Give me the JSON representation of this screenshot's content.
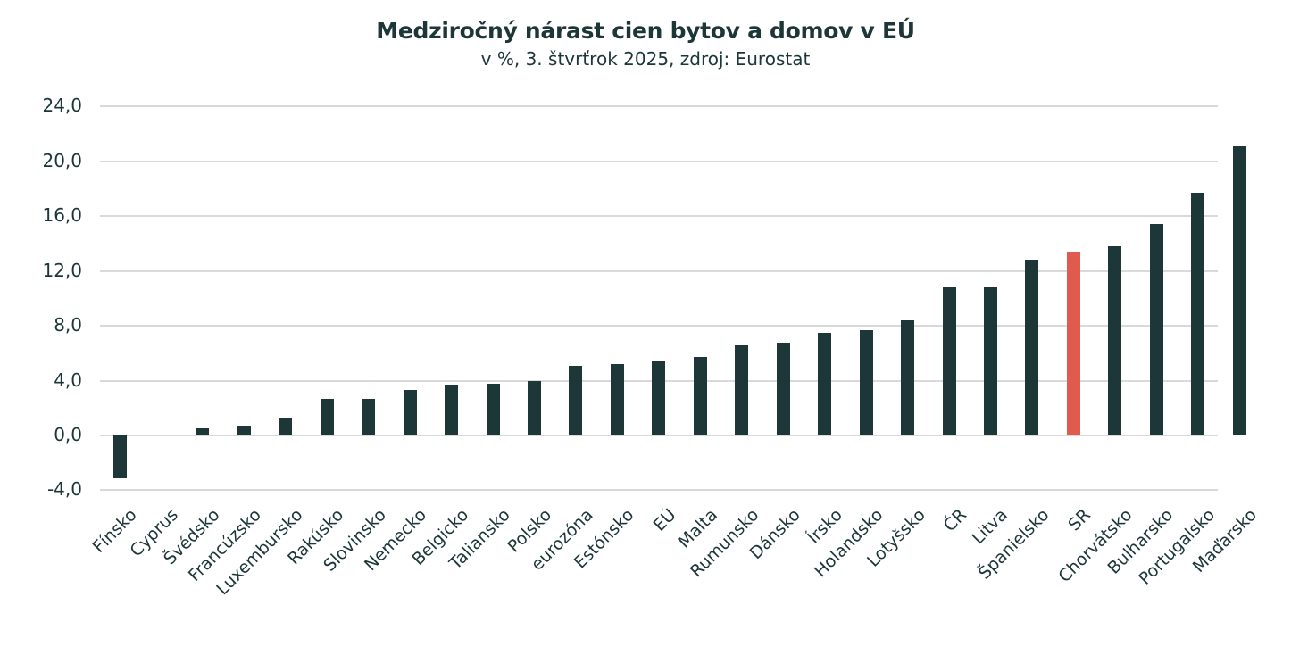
{
  "chart_data": {
    "type": "bar",
    "title": "Medziročný nárast cien bytov a domov v EÚ",
    "subtitle": "v %, 3. štvrťrok 2025, zdroj: Eurostat",
    "xlabel": "",
    "ylabel": "",
    "ylim": [
      -4,
      24
    ],
    "yticks": [
      "24,0",
      "20,0",
      "16,0",
      "12,0",
      "8,0",
      "4,0",
      "0,0",
      "-4,0"
    ],
    "ytick_values": [
      24,
      20,
      16,
      12,
      8,
      4,
      0,
      -4
    ],
    "grid": true,
    "legend": null,
    "categories": [
      "Fínsko",
      "Cyprus",
      "Švédsko",
      "Francúzsko",
      "Luxembursko",
      "Rakúsko",
      "Slovinsko",
      "Nemecko",
      "Belgicko",
      "Taliansko",
      "Polsko",
      "eurozóna",
      "Estónsko",
      "EÚ",
      "Malta",
      "Rumunsko",
      "Dánsko",
      "Írsko",
      "Holandsko",
      "Lotyšsko",
      "ČR",
      "Litva",
      "Španielsko",
      "SR",
      "Chorvátsko",
      "Bulharsko",
      "Portugalsko",
      "Maďarsko"
    ],
    "values": [
      -3.1,
      0.1,
      0.5,
      0.7,
      1.3,
      2.7,
      2.7,
      3.3,
      3.7,
      3.8,
      4.0,
      5.1,
      5.2,
      5.5,
      5.7,
      6.6,
      6.8,
      7.5,
      7.7,
      8.4,
      10.8,
      10.8,
      12.8,
      13.4,
      13.8,
      15.4,
      17.7,
      21.1
    ],
    "highlight_category": "SR",
    "colors": {
      "bar": "#1d3638",
      "highlight": "#e05a4e",
      "grid": "#d9d9d9",
      "text": "#1d3638"
    }
  }
}
